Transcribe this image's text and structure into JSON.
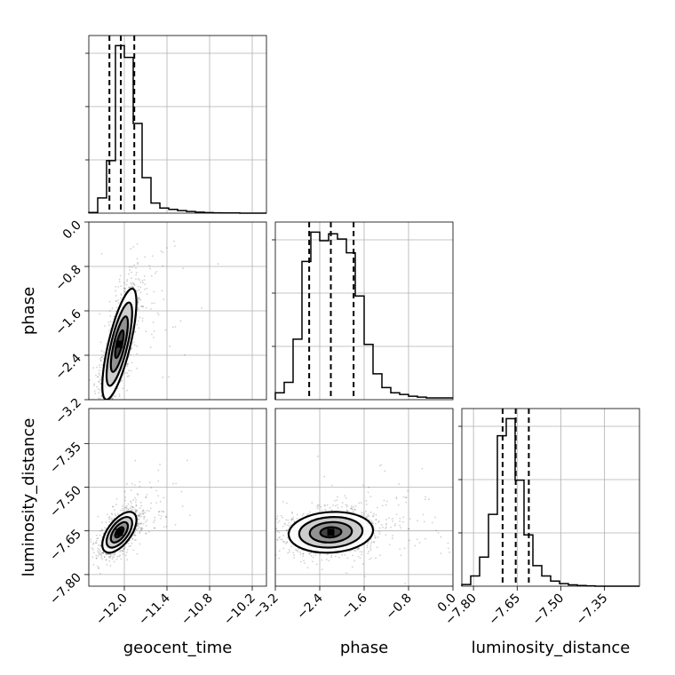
{
  "chart_data": {
    "type": "corner",
    "parameters": [
      "geocent_time",
      "phase",
      "luminosity_distance"
    ],
    "axis_labels": {
      "x": [
        "geocent_time",
        "phase",
        "luminosity_distance"
      ],
      "y": [
        "phase",
        "luminosity_distance"
      ]
    },
    "ranges": {
      "geocent_time": [
        -12.5,
        -10.0
      ],
      "phase": [
        -3.2,
        0.0
      ],
      "luminosity_distance": [
        -7.84,
        -7.23
      ]
    },
    "ticks": {
      "geocent_time": [
        "−12.0",
        "−11.4",
        "−10.8",
        "−10.2"
      ],
      "geocent_time_values": [
        -12.0,
        -11.4,
        -10.8,
        -10.2
      ],
      "phase": [
        "−3.2",
        "−2.4",
        "−1.6",
        "−0.8",
        "0.0"
      ],
      "phase_values": [
        -3.2,
        -2.4,
        -1.6,
        -0.8,
        0.0
      ],
      "luminosity_distance": [
        "−7.80",
        "−7.65",
        "−7.50",
        "−7.35"
      ],
      "luminosity_distance_values": [
        -7.8,
        -7.65,
        -7.5,
        -7.35
      ]
    },
    "histograms": {
      "geocent_time": {
        "edges": [
          -12.5,
          -12.375,
          -12.25,
          -12.125,
          -12.0,
          -11.875,
          -11.75,
          -11.625,
          -11.5,
          -11.375,
          -11.25,
          -11.125,
          -11.0,
          -10.875,
          -10.75,
          -10.625,
          -10.5,
          -10.375,
          -10.25,
          -10.125,
          -10.0
        ],
        "counts": [
          0.004,
          0.09,
          0.31,
          0.99,
          0.92,
          0.53,
          0.21,
          0.06,
          0.03,
          0.022,
          0.015,
          0.01,
          0.006,
          0.003,
          0.002,
          0.001,
          0.001,
          0,
          0,
          0
        ],
        "quantiles": [
          -12.21,
          -12.05,
          -11.86
        ]
      },
      "phase": {
        "edges": [
          -3.2,
          -3.04,
          -2.88,
          -2.72,
          -2.56,
          -2.4,
          -2.24,
          -2.08,
          -1.92,
          -1.76,
          -1.6,
          -1.44,
          -1.28,
          -1.12,
          -0.96,
          -0.8,
          -0.64,
          -0.48,
          -0.32,
          -0.16,
          0.0
        ],
        "counts": [
          0.04,
          0.1,
          0.35,
          0.8,
          0.97,
          0.92,
          0.96,
          0.93,
          0.85,
          0.6,
          0.32,
          0.15,
          0.07,
          0.04,
          0.03,
          0.02,
          0.015,
          0.01,
          0.01,
          0.01
        ],
        "quantiles": [
          -2.59,
          -2.2,
          -1.79
        ]
      },
      "luminosity_distance": {
        "edges": [
          -7.84,
          -7.8095,
          -7.779,
          -7.7485,
          -7.718,
          -7.6875,
          -7.657,
          -7.6265,
          -7.596,
          -7.5655,
          -7.535,
          -7.5045,
          -7.474,
          -7.4435,
          -7.413,
          -7.3825,
          -7.352,
          -7.3215,
          -7.291,
          -7.2605,
          -7.23
        ],
        "counts": [
          0.01,
          0.06,
          0.17,
          0.42,
          0.88,
          0.98,
          0.62,
          0.3,
          0.12,
          0.06,
          0.03,
          0.015,
          0.008,
          0.004,
          0.002,
          0.0,
          0.0,
          0.0,
          0.0,
          0.0
        ],
        "quantiles": [
          -7.7,
          -7.655,
          -7.61
        ]
      }
    },
    "scatter_panels": [
      {
        "x": "geocent_time",
        "y": "phase",
        "mean": [
          -12.07,
          -2.2
        ],
        "sigma": [
          0.12,
          0.5
        ],
        "correlation": 0.75
      },
      {
        "x": "geocent_time",
        "y": "luminosity_distance",
        "mean": [
          -12.07,
          -7.655
        ],
        "sigma": [
          0.12,
          0.035
        ],
        "correlation": 0.6
      },
      {
        "x": "phase",
        "y": "luminosity_distance",
        "mean": [
          -2.2,
          -7.655
        ],
        "sigma": [
          0.38,
          0.035
        ],
        "correlation": 0.1
      }
    ],
    "contour_levels_sigma": [
      0.5,
      1.0,
      1.5,
      2.0
    ],
    "grid": true
  }
}
